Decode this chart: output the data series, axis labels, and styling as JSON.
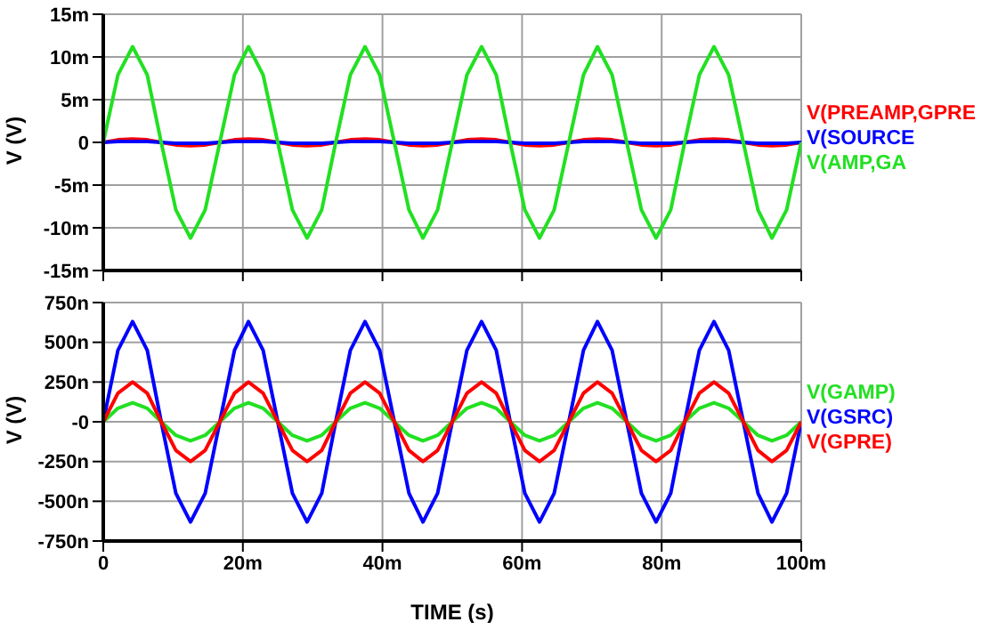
{
  "chart_data": [
    {
      "type": "line",
      "ylabel": "V  (V)",
      "grid": true,
      "tick_labels": "y",
      "legend": false,
      "marker": "none",
      "line_style": "solid",
      "x": [
        0,
        2.1,
        4.2,
        6.3,
        8.3,
        10.4,
        12.5,
        14.6,
        16.7,
        18.8,
        20.8,
        22.9,
        25,
        27.1,
        29.2,
        31.3,
        33.3,
        35.4,
        37.5,
        39.6,
        41.7,
        43.8,
        45.8,
        47.9,
        50,
        52.1,
        54.2,
        56.3,
        58.3,
        60.4,
        62.5,
        64.6,
        66.7,
        68.8,
        70.8,
        72.9,
        75,
        77.1,
        79.2,
        81.3,
        83.3,
        85.4,
        87.5,
        89.6,
        91.7,
        93.8,
        95.8,
        97.9,
        100
      ],
      "xlim": [
        0,
        100
      ],
      "xticks": [
        {
          "value": 0,
          "label": null
        },
        {
          "value": 20,
          "label": null
        },
        {
          "value": 40,
          "label": null
        },
        {
          "value": 60,
          "label": null
        },
        {
          "value": 80,
          "label": null
        },
        {
          "value": 100,
          "label": null
        }
      ],
      "ylim": [
        -15,
        15
      ],
      "yticks": [
        {
          "value": -15,
          "label": "-15m"
        },
        {
          "value": -10,
          "label": "-10m"
        },
        {
          "value": -5,
          "label": "-5m"
        },
        {
          "value": 0,
          "label": "0"
        },
        {
          "value": 5,
          "label": "5m"
        },
        {
          "value": 10,
          "label": "10m"
        },
        {
          "value": 15,
          "label": "15m"
        }
      ],
      "series": [
        {
          "name": "V(PREAMP,GPRE",
          "color": "#ff0000",
          "values": [
            0,
            0.3,
            0.4,
            0.3,
            0,
            -0.3,
            -0.4,
            -0.3,
            0,
            0.3,
            0.4,
            0.3,
            0,
            -0.3,
            -0.4,
            -0.3,
            0,
            0.3,
            0.4,
            0.3,
            0,
            -0.3,
            -0.4,
            -0.3,
            0,
            0.3,
            0.4,
            0.3,
            0,
            -0.3,
            -0.4,
            -0.3,
            0,
            0.3,
            0.4,
            0.3,
            0,
            -0.3,
            -0.4,
            -0.3,
            0,
            0.3,
            0.4,
            0.3,
            0,
            -0.3,
            -0.4,
            -0.3,
            0
          ]
        },
        {
          "name": "V(SOURCE",
          "color": "#0000ff",
          "values": [
            0,
            0.1,
            0.1,
            0.1,
            0,
            -0.1,
            -0.1,
            -0.1,
            0,
            0.1,
            0.1,
            0.1,
            0,
            -0.1,
            -0.1,
            -0.1,
            0,
            0.1,
            0.1,
            0.1,
            0,
            -0.1,
            -0.1,
            -0.1,
            0,
            0.1,
            0.1,
            0.1,
            0,
            -0.1,
            -0.1,
            -0.1,
            0,
            0.1,
            0.1,
            0.1,
            0,
            -0.1,
            -0.1,
            -0.1,
            0,
            0.1,
            0.1,
            0.1,
            0,
            -0.1,
            -0.1,
            -0.1,
            0
          ]
        },
        {
          "name": "V(AMP,GA",
          "color": "#22e022",
          "values": [
            0,
            7.9,
            11.2,
            7.9,
            0,
            -7.9,
            -11.2,
            -7.9,
            0,
            7.9,
            11.2,
            7.9,
            0,
            -7.9,
            -11.2,
            -7.9,
            0,
            7.9,
            11.2,
            7.9,
            0,
            -7.9,
            -11.2,
            -7.9,
            0,
            7.9,
            11.2,
            7.9,
            0,
            -7.9,
            -11.2,
            -7.9,
            0,
            7.9,
            11.2,
            7.9,
            0,
            -7.9,
            -11.2,
            -7.9,
            0,
            7.9,
            11.2,
            7.9,
            0,
            -7.9,
            -11.2,
            -7.9,
            0
          ]
        }
      ]
    },
    {
      "type": "line",
      "xlabel": "TIME  (s)",
      "ylabel": "V  (V)",
      "grid": true,
      "legend": false,
      "marker": "none",
      "line_style": "solid",
      "x": [
        0,
        2.1,
        4.2,
        6.3,
        8.3,
        10.4,
        12.5,
        14.6,
        16.7,
        18.8,
        20.8,
        22.9,
        25,
        27.1,
        29.2,
        31.3,
        33.3,
        35.4,
        37.5,
        39.6,
        41.7,
        43.8,
        45.8,
        47.9,
        50,
        52.1,
        54.2,
        56.3,
        58.3,
        60.4,
        62.5,
        64.6,
        66.7,
        68.8,
        70.8,
        72.9,
        75,
        77.1,
        79.2,
        81.3,
        83.3,
        85.4,
        87.5,
        89.6,
        91.7,
        93.8,
        95.8,
        97.9,
        100
      ],
      "xlim": [
        0,
        100
      ],
      "xticks": [
        0,
        {
          "value": 20,
          "label": "20m"
        },
        {
          "value": 40,
          "label": "40m"
        },
        {
          "value": 60,
          "label": "60m"
        },
        {
          "value": 80,
          "label": "80m"
        },
        {
          "value": 100,
          "label": "100m"
        }
      ],
      "ylim": [
        -750,
        750
      ],
      "yticks": [
        {
          "value": -750,
          "label": "-750n"
        },
        {
          "value": -500,
          "label": "-500n"
        },
        {
          "value": -250,
          "label": "-250n"
        },
        {
          "value": 0,
          "label": "-0"
        },
        {
          "value": 250,
          "label": "250n"
        },
        {
          "value": 500,
          "label": "500n"
        },
        {
          "value": 750,
          "label": "750n"
        }
      ],
      "series": [
        {
          "name": "V(GAMP)",
          "color": "#22e022",
          "values": [
            0,
            85,
            120,
            85,
            0,
            -85,
            -120,
            -85,
            0,
            85,
            120,
            85,
            0,
            -85,
            -120,
            -85,
            0,
            85,
            120,
            85,
            0,
            -85,
            -120,
            -85,
            0,
            85,
            120,
            85,
            0,
            -85,
            -120,
            -85,
            0,
            85,
            120,
            85,
            0,
            -85,
            -120,
            -85,
            0,
            85,
            120,
            85,
            0,
            -85,
            -120,
            -85,
            0
          ]
        },
        {
          "name": "V(GSRC)",
          "color": "#0000ff",
          "values": [
            0,
            450,
            630,
            450,
            0,
            -450,
            -630,
            -450,
            0,
            450,
            630,
            450,
            0,
            -450,
            -630,
            -450,
            0,
            450,
            630,
            450,
            0,
            -450,
            -630,
            -450,
            0,
            450,
            630,
            450,
            0,
            -450,
            -630,
            -450,
            0,
            450,
            630,
            450,
            0,
            -450,
            -630,
            -450,
            0,
            450,
            630,
            450,
            0,
            -450,
            -630,
            -450,
            0
          ]
        },
        {
          "name": "V(GPRE)",
          "color": "#ff0000",
          "values": [
            0,
            180,
            250,
            180,
            0,
            -180,
            -250,
            -180,
            0,
            180,
            250,
            180,
            0,
            -180,
            -250,
            -180,
            0,
            180,
            250,
            180,
            0,
            -180,
            -250,
            -180,
            0,
            180,
            250,
            180,
            0,
            -180,
            -250,
            -180,
            0,
            180,
            250,
            180,
            0,
            -180,
            -250,
            -180,
            0,
            180,
            250,
            180,
            0,
            -180,
            -250,
            -180,
            0
          ]
        }
      ]
    }
  ]
}
